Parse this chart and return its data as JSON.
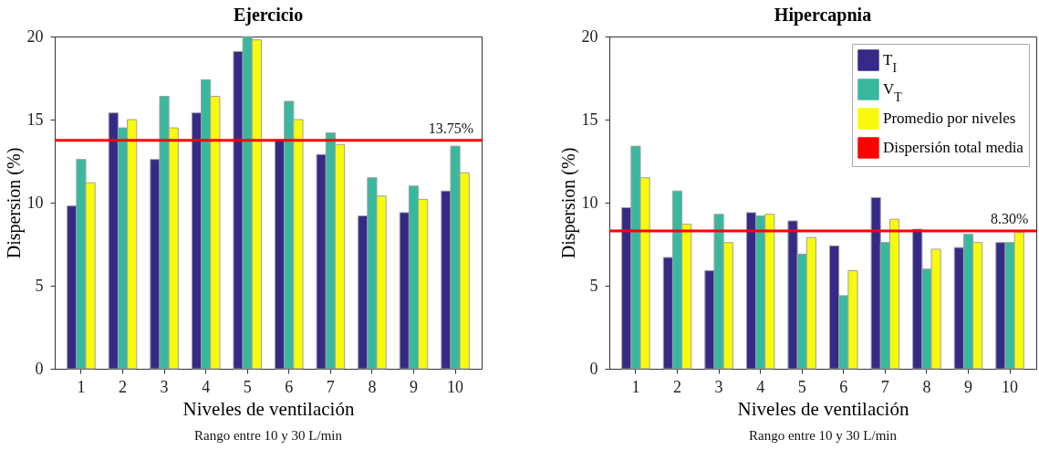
{
  "chart_data": [
    {
      "type": "bar",
      "title": "Ejercicio",
      "xlabel": "Niveles de ventilación",
      "ylabel": "Dispersion (%)",
      "categories": [
        "1",
        "2",
        "3",
        "4",
        "5",
        "6",
        "7",
        "8",
        "9",
        "10"
      ],
      "series": [
        {
          "color": "#352a87",
          "values": [
            9.8,
            15.4,
            12.6,
            15.4,
            19.1,
            13.8,
            12.9,
            9.2,
            9.4,
            10.7
          ]
        },
        {
          "color": "#38b99e",
          "values": [
            12.6,
            14.5,
            16.4,
            17.4,
            20,
            16.1,
            14.2,
            11.5,
            11.0,
            13.4
          ]
        },
        {
          "color": "#f8fa0d",
          "values": [
            11.2,
            15.0,
            14.5,
            16.4,
            19.8,
            15.0,
            13.5,
            10.4,
            10.2,
            11.8
          ]
        }
      ],
      "ylim": [
        0,
        20
      ],
      "yticks": [
        0,
        5,
        10,
        15,
        20
      ],
      "grid": false,
      "legend": false,
      "ref_lines": [
        {
          "axis": "y",
          "value": 13.75,
          "label": "13.75%",
          "color": "#ff0000"
        }
      ],
      "annotations": [
        "Rango entre 10 y 30 L/min"
      ]
    },
    {
      "type": "bar",
      "title": "Hipercapnia",
      "xlabel": "Niveles de ventilación",
      "ylabel": "Dispersion (%)",
      "categories": [
        "1",
        "2",
        "3",
        "4",
        "5",
        "6",
        "7",
        "8",
        "9",
        "10"
      ],
      "series": [
        {
          "name": "T$_{I}$",
          "color": "#352a87",
          "values": [
            9.7,
            6.7,
            5.9,
            9.4,
            8.9,
            7.4,
            10.3,
            8.4,
            7.3,
            7.6
          ]
        },
        {
          "name": "V$_{T}$",
          "color": "#38b99e",
          "values": [
            13.4,
            10.7,
            9.3,
            9.2,
            6.9,
            4.4,
            7.6,
            6.0,
            8.1,
            7.6
          ]
        },
        {
          "name": "Promedio por niveles",
          "color": "#f8fa0d",
          "values": [
            11.5,
            8.7,
            7.6,
            9.3,
            7.9,
            5.9,
            9.0,
            7.2,
            7.6,
            8.2
          ]
        }
      ],
      "ylim": [
        0,
        20
      ],
      "yticks": [
        0,
        5,
        10,
        15,
        20
      ],
      "grid": false,
      "legend": "top right",
      "ref_lines": [
        {
          "axis": "y",
          "value": 8.3,
          "label": "Dispersión total media",
          "color": "#ff0000"
        }
      ],
      "annotations": [
        "8.30%",
        "Rango entre 10 y 30 L/min"
      ]
    }
  ]
}
